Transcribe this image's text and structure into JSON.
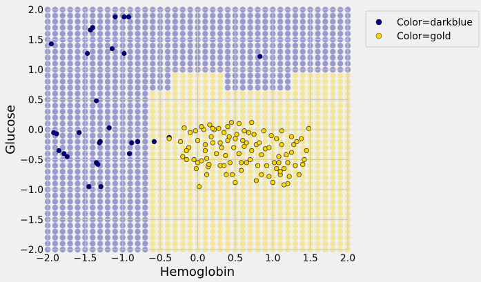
{
  "chart_data": {
    "type": "scatter",
    "title": "",
    "xlabel": "Hemoglobin",
    "ylabel": "Glucose",
    "xlim": [
      -2.0,
      2.0
    ],
    "ylim": [
      -2.0,
      2.0
    ],
    "x_ticks": [
      "−2.0",
      "−1.5",
      "−1.0",
      "−0.5",
      "0.0",
      "0.5",
      "1.0",
      "1.5",
      "2.0"
    ],
    "y_ticks": [
      "−2.0",
      "−1.5",
      "−1.0",
      "−0.5",
      "0.0",
      "0.5",
      "1.0",
      "1.5",
      "2.0"
    ],
    "grid": true,
    "legend_position": "outside-top-right",
    "background_grid": {
      "step": 0.1,
      "colors": {
        "darkblue": "#8b8bc8",
        "gold": "#f5e48a"
      },
      "gold_region": [
        {
          "x_from": -0.6,
          "x_to": -0.3,
          "y_from": -2.0,
          "y_to": 0.0
        },
        {
          "x_from": -0.6,
          "x_to": -0.3,
          "y_from": 0.0,
          "y_to": 0.6,
          "exclude_right_lower": true
        },
        {
          "x_from": -0.3,
          "x_to": 0.3,
          "y_from": -2.0,
          "y_to": 0.9
        },
        {
          "x_from": 0.3,
          "x_to": 2.0,
          "y_from": -2.0,
          "y_to": 0.6
        },
        {
          "x_from": 1.3,
          "x_to": 2.0,
          "y_from": 0.6,
          "y_to": 0.9
        }
      ]
    },
    "series": [
      {
        "name": "Color=darkblue",
        "color": "#00008b",
        "points": [
          [
            -1.95,
            1.43
          ],
          [
            -1.92,
            -0.05
          ],
          [
            -1.88,
            -0.07
          ],
          [
            -1.85,
            -0.35
          ],
          [
            -1.78,
            -0.4
          ],
          [
            -1.74,
            -0.45
          ],
          [
            -1.58,
            -0.05
          ],
          [
            -1.47,
            1.27
          ],
          [
            -1.43,
            1.66
          ],
          [
            -1.4,
            1.7
          ],
          [
            -1.45,
            -0.95
          ],
          [
            -1.35,
            0.48
          ],
          [
            -1.35,
            -0.55
          ],
          [
            -1.33,
            -0.58
          ],
          [
            -1.3,
            -0.2
          ],
          [
            -1.31,
            -0.22
          ],
          [
            -1.29,
            -0.95
          ],
          [
            -1.18,
            0.03
          ],
          [
            -1.14,
            1.35
          ],
          [
            -1.1,
            1.88
          ],
          [
            -0.98,
            1.88
          ],
          [
            -0.98,
            1.27
          ],
          [
            -0.92,
            1.88
          ],
          [
            -0.91,
            -0.4
          ],
          [
            -0.88,
            -0.22
          ],
          [
            -0.8,
            -0.2
          ],
          [
            -0.58,
            -0.2
          ],
          [
            -0.38,
            -0.13
          ],
          [
            0.83,
            1.22
          ]
        ]
      },
      {
        "name": "Color=gold",
        "color": "#ffd700",
        "points": [
          [
            -0.38,
            -0.15
          ],
          [
            -0.23,
            -0.2
          ],
          [
            -0.2,
            -0.45
          ],
          [
            -0.18,
            0.03
          ],
          [
            -0.15,
            -0.5
          ],
          [
            -0.12,
            -0.3
          ],
          [
            -0.1,
            -0.05
          ],
          [
            -0.05,
            -0.5
          ],
          [
            -0.03,
            -0.02
          ],
          [
            -0.02,
            -0.65
          ],
          [
            0.0,
            -0.55
          ],
          [
            0.0,
            -0.18
          ],
          [
            0.02,
            -0.95
          ],
          [
            0.05,
            -0.52
          ],
          [
            0.08,
            0.0
          ],
          [
            0.1,
            -0.25
          ],
          [
            0.1,
            -0.35
          ],
          [
            0.12,
            -0.75
          ],
          [
            0.12,
            -0.48
          ],
          [
            0.14,
            -0.62
          ],
          [
            0.15,
            -0.58
          ],
          [
            0.16,
            0.08
          ],
          [
            0.18,
            -0.12
          ],
          [
            0.2,
            -0.22
          ],
          [
            0.22,
            0.0
          ],
          [
            0.25,
            -0.4
          ],
          [
            0.28,
            0.02
          ],
          [
            0.3,
            -0.6
          ],
          [
            0.32,
            -0.3
          ],
          [
            0.35,
            -0.05
          ],
          [
            0.35,
            -0.6
          ],
          [
            0.37,
            -0.43
          ],
          [
            0.38,
            -0.75
          ],
          [
            0.4,
            -0.18
          ],
          [
            0.4,
            0.05
          ],
          [
            0.42,
            -0.12
          ],
          [
            0.43,
            -0.55
          ],
          [
            0.45,
            0.12
          ],
          [
            0.46,
            -0.75
          ],
          [
            0.48,
            -0.3
          ],
          [
            0.5,
            -0.15
          ],
          [
            0.5,
            -0.88
          ],
          [
            0.52,
            -0.08
          ],
          [
            0.55,
            -0.4
          ],
          [
            0.58,
            -0.55
          ],
          [
            0.6,
            -0.18
          ],
          [
            0.62,
            -0.02
          ],
          [
            0.62,
            -0.28
          ],
          [
            0.65,
            -0.22
          ],
          [
            0.68,
            -0.05
          ],
          [
            0.7,
            -0.5
          ],
          [
            0.72,
            -0.35
          ],
          [
            0.72,
            0.12
          ],
          [
            0.75,
            -0.08
          ],
          [
            0.78,
            -0.25
          ],
          [
            0.78,
            -0.85
          ],
          [
            0.8,
            -0.6
          ],
          [
            0.82,
            -0.22
          ],
          [
            0.85,
            -0.42
          ],
          [
            0.85,
            -0.75
          ],
          [
            0.88,
            -0.02
          ],
          [
            0.9,
            -0.32
          ],
          [
            0.92,
            -0.6
          ],
          [
            0.95,
            -0.3
          ],
          [
            0.95,
            -0.78
          ],
          [
            0.98,
            -0.1
          ],
          [
            1.0,
            -0.88
          ],
          [
            1.02,
            -0.55
          ],
          [
            1.05,
            -0.65
          ],
          [
            1.05,
            -0.15
          ],
          [
            1.08,
            -0.55
          ],
          [
            1.1,
            -0.75
          ],
          [
            1.12,
            -0.02
          ],
          [
            1.12,
            -0.25
          ],
          [
            1.15,
            -0.65
          ],
          [
            1.18,
            -0.42
          ],
          [
            1.2,
            -0.55
          ],
          [
            1.2,
            -0.9
          ],
          [
            1.22,
            -0.78
          ],
          [
            1.25,
            -0.38
          ],
          [
            1.28,
            -0.25
          ],
          [
            1.3,
            -0.6
          ],
          [
            1.32,
            -0.2
          ],
          [
            1.35,
            -0.75
          ],
          [
            1.38,
            -0.15
          ],
          [
            1.4,
            -0.58
          ],
          [
            1.42,
            -0.5
          ],
          [
            1.45,
            -0.35
          ],
          [
            1.48,
            0.02
          ],
          [
            1.1,
            -0.7
          ],
          [
            1.15,
            -0.92
          ],
          [
            1.25,
            -0.12
          ],
          [
            0.58,
            -0.68
          ],
          [
            0.3,
            -0.22
          ],
          [
            0.05,
            0.05
          ],
          [
            -0.15,
            -0.35
          ],
          [
            0.2,
            0.02
          ],
          [
            0.65,
            -0.55
          ],
          [
            0.55,
            0.1
          ],
          [
            1.08,
            -0.45
          ]
        ]
      }
    ]
  }
}
